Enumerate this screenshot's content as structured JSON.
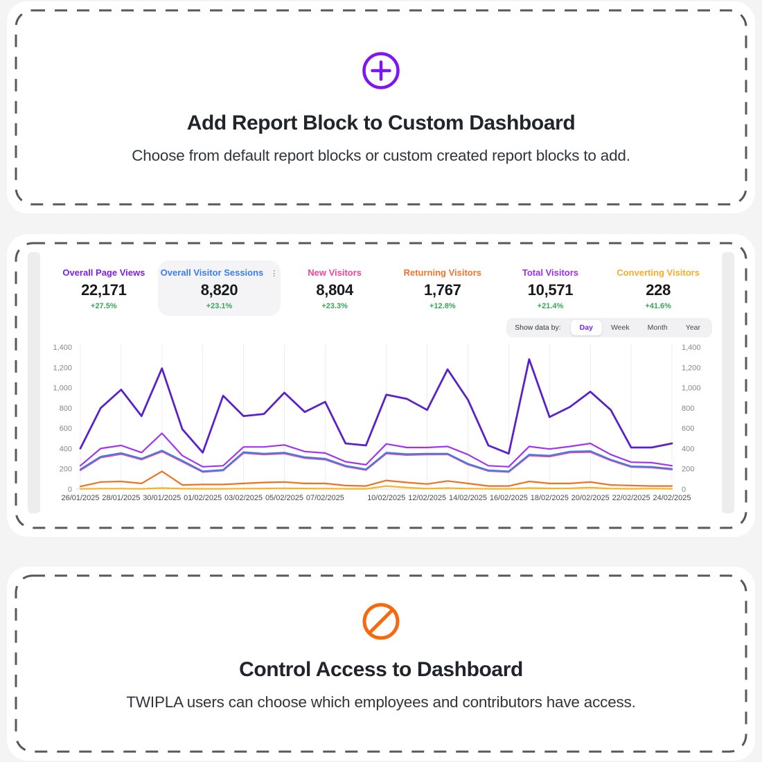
{
  "cards": {
    "add_block": {
      "icon": "plus-circle-icon",
      "icon_color": "#7e16f2",
      "title": "Add Report Block to Custom Dashboard",
      "subtitle": "Choose from default report blocks or custom created report blocks to add."
    },
    "access": {
      "icon": "blocked-circle-icon",
      "icon_color": "#f8680f",
      "title": "Control Access to Dashboard",
      "subtitle": "TWIPLA users can choose which employees and contributors have access."
    }
  },
  "dashboard": {
    "metrics": [
      {
        "label": "Overall Page Views",
        "value": "22,171",
        "delta": "+27.5%",
        "color": "#7c1fe0",
        "selected": false
      },
      {
        "label": "Overall Visitor Sessions",
        "value": "8,820",
        "delta": "+23.1%",
        "color": "#3b7de9",
        "selected": true,
        "menu_icon": "kebab-menu-icon"
      },
      {
        "label": "New Visitors",
        "value": "8,804",
        "delta": "+23.3%",
        "color": "#e8489b",
        "selected": false
      },
      {
        "label": "Returning Visitors",
        "value": "1,767",
        "delta": "+12.8%",
        "color": "#f0742c",
        "selected": false
      },
      {
        "label": "Total Visitors",
        "value": "10,571",
        "delta": "+21.4%",
        "color": "#9b2fe8",
        "selected": false
      },
      {
        "label": "Converting Visitors",
        "value": "228",
        "delta": "+41.6%",
        "color": "#f3ac2e",
        "selected": false
      }
    ],
    "delta_color": "#35a756",
    "show_data_by": {
      "label": "Show data by:",
      "options": [
        "Day",
        "Week",
        "Month",
        "Year"
      ],
      "selected": "Day",
      "selected_color": "#7b22e0"
    }
  },
  "chart_data": {
    "type": "line",
    "title": "",
    "xlabel": "",
    "ylabel": "",
    "start_date": "26/01/2025",
    "end_date": "24/02/2025",
    "days": 30,
    "x_labels": [
      "26/01/2025",
      "28/01/2025",
      "30/01/2025",
      "01/02/2025",
      "03/02/2025",
      "05/02/2025",
      "07/02/2025",
      "10/02/2025",
      "12/02/2025",
      "14/02/2025",
      "16/02/2025",
      "18/02/2025",
      "20/02/2025",
      "22/02/2025",
      "24/02/2025"
    ],
    "x_label_day_indices": [
      0,
      2,
      4,
      6,
      8,
      10,
      12,
      15,
      17,
      19,
      21,
      23,
      25,
      27,
      29
    ],
    "y_ticks": [
      "1,400",
      "1,200",
      "1,000",
      "800",
      "600",
      "400",
      "200",
      "0"
    ],
    "ylim": [
      0,
      1400
    ],
    "grid": "vertical",
    "legend": "none",
    "dual_y_axis": true,
    "series": [
      {
        "name": "Overall Page Views",
        "color": "#5b21c9",
        "values": [
          400,
          800,
          980,
          720,
          1190,
          590,
          360,
          920,
          720,
          740,
          950,
          760,
          860,
          450,
          430,
          930,
          890,
          780,
          1180,
          880,
          430,
          350,
          1280,
          710,
          810,
          960,
          780,
          410,
          410,
          450
        ]
      },
      {
        "name": "Total Visitors",
        "color": "#a234ee",
        "values": [
          230,
          400,
          430,
          360,
          550,
          330,
          220,
          230,
          415,
          415,
          435,
          370,
          355,
          270,
          240,
          445,
          410,
          410,
          420,
          340,
          230,
          220,
          420,
          395,
          420,
          450,
          340,
          265,
          260,
          230
        ]
      },
      {
        "name": "Overall Visitor Sessions",
        "color": "#3b7de9",
        "values": [
          195,
          320,
          355,
          300,
          380,
          280,
          175,
          190,
          365,
          350,
          360,
          315,
          300,
          230,
          195,
          360,
          345,
          350,
          350,
          250,
          185,
          175,
          340,
          330,
          370,
          375,
          290,
          225,
          220,
          200
        ]
      },
      {
        "name": "New Visitors",
        "color": "#e8489b",
        "values": [
          185,
          310,
          345,
          290,
          370,
          270,
          168,
          182,
          355,
          340,
          350,
          305,
          290,
          222,
          188,
          350,
          335,
          340,
          342,
          242,
          178,
          168,
          330,
          320,
          360,
          365,
          282,
          218,
          212,
          192
        ]
      },
      {
        "name": "Returning Visitors",
        "color": "#ee7220",
        "values": [
          25,
          70,
          75,
          55,
          175,
          40,
          45,
          45,
          55,
          65,
          70,
          55,
          55,
          35,
          30,
          85,
          65,
          50,
          80,
          55,
          30,
          30,
          75,
          55,
          55,
          70,
          40,
          35,
          30,
          30
        ]
      },
      {
        "name": "Converting Visitors",
        "color": "#f6b42c",
        "values": [
          2,
          4,
          5,
          3,
          10,
          4,
          3,
          3,
          5,
          6,
          8,
          6,
          5,
          3,
          2,
          30,
          14,
          5,
          10,
          5,
          2,
          2,
          10,
          7,
          8,
          14,
          5,
          3,
          5,
          3
        ]
      }
    ]
  }
}
